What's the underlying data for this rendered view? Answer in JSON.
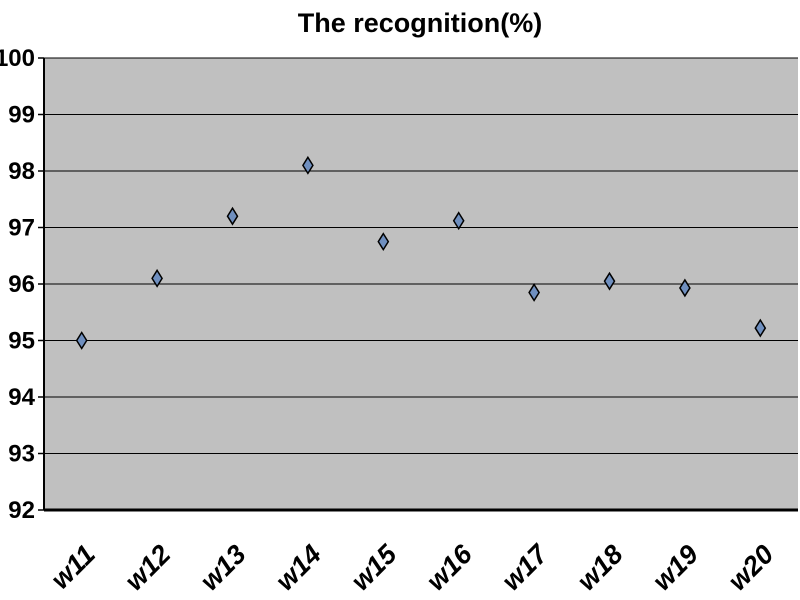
{
  "chart_data": {
    "type": "scatter",
    "title": "The recognition(%)",
    "xlabel": "",
    "ylabel": "",
    "categories": [
      "w11",
      "w12",
      "w13",
      "w14",
      "w15",
      "w16",
      "w17",
      "w18",
      "w19",
      "w20"
    ],
    "series": [
      {
        "values": [
          95.0,
          96.1,
          97.2,
          98.1,
          96.75,
          97.12,
          95.85,
          96.05,
          95.93,
          95.22
        ]
      }
    ],
    "ylim": [
      92,
      100
    ],
    "yticks": [
      "92",
      "93",
      "94",
      "95",
      "96",
      "97",
      "98",
      "99",
      "100"
    ],
    "grid": true,
    "legend": "none",
    "marker": "diamond",
    "colors": {
      "plot_bg": "#c0c0c0",
      "gridline": "#000000",
      "marker_fill": "#6f8fbf",
      "marker_stroke": "#000000"
    }
  }
}
